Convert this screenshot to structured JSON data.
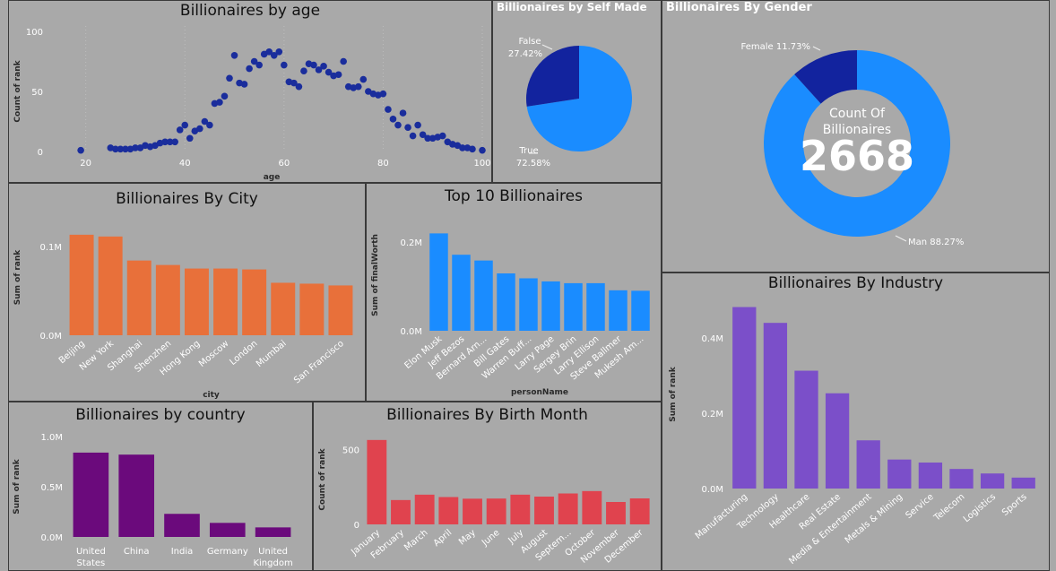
{
  "charts": {
    "age": {
      "title": "Billionaires by age",
      "chart_data": {
        "type": "scatter",
        "title": "Billionaires by age",
        "xlabel": "age",
        "ylabel": "Count of rank",
        "xlim": [
          15,
          100
        ],
        "ylim": [
          0,
          100
        ],
        "xticks": [
          20,
          40,
          60,
          80,
          100
        ],
        "yticks": [
          0,
          50,
          100
        ],
        "color": "#1a2d9c",
        "points": [
          [
            19,
            1
          ],
          [
            25,
            3
          ],
          [
            26,
            2
          ],
          [
            27,
            2
          ],
          [
            28,
            2
          ],
          [
            29,
            2
          ],
          [
            30,
            3
          ],
          [
            31,
            3
          ],
          [
            32,
            5
          ],
          [
            33,
            4
          ],
          [
            34,
            5
          ],
          [
            35,
            7
          ],
          [
            36,
            8
          ],
          [
            37,
            8
          ],
          [
            38,
            8
          ],
          [
            39,
            18
          ],
          [
            40,
            22
          ],
          [
            41,
            11
          ],
          [
            42,
            17
          ],
          [
            43,
            19
          ],
          [
            44,
            25
          ],
          [
            45,
            22
          ],
          [
            46,
            40
          ],
          [
            47,
            41
          ],
          [
            48,
            46
          ],
          [
            49,
            61
          ],
          [
            50,
            80
          ],
          [
            51,
            57
          ],
          [
            52,
            56
          ],
          [
            53,
            69
          ],
          [
            54,
            75
          ],
          [
            55,
            72
          ],
          [
            56,
            81
          ],
          [
            57,
            83
          ],
          [
            58,
            80
          ],
          [
            59,
            83
          ],
          [
            60,
            72
          ],
          [
            61,
            58
          ],
          [
            62,
            57
          ],
          [
            63,
            54
          ],
          [
            64,
            67
          ],
          [
            65,
            73
          ],
          [
            66,
            72
          ],
          [
            67,
            68
          ],
          [
            68,
            71
          ],
          [
            69,
            66
          ],
          [
            70,
            63
          ],
          [
            71,
            64
          ],
          [
            72,
            75
          ],
          [
            73,
            54
          ],
          [
            74,
            53
          ],
          [
            75,
            54
          ],
          [
            76,
            60
          ],
          [
            77,
            50
          ],
          [
            78,
            48
          ],
          [
            79,
            47
          ],
          [
            80,
            48
          ],
          [
            81,
            35
          ],
          [
            82,
            27
          ],
          [
            83,
            22
          ],
          [
            84,
            32
          ],
          [
            85,
            20
          ],
          [
            86,
            13
          ],
          [
            87,
            22
          ],
          [
            88,
            14
          ],
          [
            89,
            11
          ],
          [
            90,
            11
          ],
          [
            91,
            12
          ],
          [
            92,
            13
          ],
          [
            93,
            8
          ],
          [
            94,
            6
          ],
          [
            95,
            5
          ],
          [
            96,
            3
          ],
          [
            97,
            3
          ],
          [
            98,
            2
          ],
          [
            100,
            1
          ]
        ]
      }
    },
    "selfmade": {
      "title": "Billionaires by Self Made",
      "chart_data": {
        "type": "pie",
        "title": "Billionaires by Self Made",
        "slices": [
          {
            "label": "True",
            "value": 72.58,
            "pct_label": "72.58%",
            "color": "#1a8cff"
          },
          {
            "label": "False",
            "value": 27.42,
            "pct_label": "27.42%",
            "color": "#12239e"
          }
        ]
      }
    },
    "gender": {
      "title": "Billionaires By Gender",
      "center_label_line1": "Count Of",
      "center_label_line2": "Billionaires",
      "center_value": "2668",
      "chart_data": {
        "type": "pie",
        "subtype": "donut",
        "title": "Billionaires By Gender",
        "slices": [
          {
            "label": "Man",
            "value": 88.27,
            "text": "Man 88.27%",
            "color": "#1a8cff"
          },
          {
            "label": "Female",
            "value": 11.73,
            "text": "Female 11.73%",
            "color": "#12239e"
          }
        ]
      }
    },
    "city": {
      "title": "Billionaires By City",
      "chart_data": {
        "type": "bar",
        "title": "Billionaires By City",
        "xlabel": "city",
        "ylabel": "Sum of rank",
        "color": "#e8703a",
        "ylim": [
          0,
          0.13
        ],
        "yticks": [
          {
            "v": 0,
            "label": "0.0M"
          },
          {
            "v": 0.1,
            "label": "0.1M"
          }
        ],
        "categories": [
          "Beijing",
          "New York",
          "Shanghai",
          "Shenzhen",
          "Hong Kong",
          "Moscow",
          "London",
          "Mumbai",
          "",
          "San Francisco"
        ],
        "values": [
          0.113,
          0.111,
          0.084,
          0.079,
          0.075,
          0.075,
          0.074,
          0.059,
          0.058,
          0.056
        ]
      }
    },
    "top10": {
      "title": "Top 10 Billionaires",
      "chart_data": {
        "type": "bar",
        "title": "Top 10 Billionaires",
        "xlabel": "personName",
        "ylabel": "Sum of finalWorth",
        "color": "#1a8cff",
        "ylim": [
          0,
          0.25
        ],
        "yticks": [
          {
            "v": 0,
            "label": "0.0M"
          },
          {
            "v": 0.2,
            "label": "0.2M"
          }
        ],
        "categories": [
          "Elon Musk",
          "Jeff Bezos",
          "Bernard Arn...",
          "Bill Gates",
          "Warren Buff...",
          "Larry Page",
          "Sergey Brin",
          "Larry Ellison",
          "Steve Ballmer",
          "Mukesh Am..."
        ],
        "values": [
          0.219,
          0.171,
          0.158,
          0.129,
          0.118,
          0.111,
          0.107,
          0.107,
          0.091,
          0.09
        ]
      }
    },
    "industry": {
      "title": "Billionaires By Industry",
      "chart_data": {
        "type": "bar",
        "title": "Billionaires By Industry",
        "xlabel": "",
        "ylabel": "Sum of rank",
        "color": "#7b4fc9",
        "ylim": [
          0,
          0.5
        ],
        "yticks": [
          {
            "v": 0,
            "label": "0.0M"
          },
          {
            "v": 0.2,
            "label": "0.2M"
          },
          {
            "v": 0.4,
            "label": "0.4M"
          }
        ],
        "categories": [
          "Manufacturing",
          "Technology",
          "Healthcare",
          "Real Estate",
          "Media & Entertainment",
          "Metals & Mining",
          "Service",
          "Telecom",
          "Logistics",
          "Sports"
        ],
        "values": [
          0.482,
          0.44,
          0.313,
          0.253,
          0.128,
          0.077,
          0.069,
          0.052,
          0.04,
          0.029
        ]
      }
    },
    "country": {
      "title": "Billionaires by country",
      "chart_data": {
        "type": "bar",
        "title": "Billionaires by country",
        "xlabel": "",
        "ylabel": "Sum of rank",
        "color": "#6b0a7c",
        "ylim": [
          0,
          1.0
        ],
        "yticks": [
          {
            "v": 0,
            "label": "0.0M"
          },
          {
            "v": 0.5,
            "label": "0.5M"
          },
          {
            "v": 1.0,
            "label": "1.0M"
          }
        ],
        "categories": [
          [
            "United",
            "States"
          ],
          [
            "China"
          ],
          [
            "India"
          ],
          [
            "Germany"
          ],
          [
            "United",
            "Kingdom"
          ]
        ],
        "values": [
          0.84,
          0.82,
          0.23,
          0.14,
          0.095
        ]
      }
    },
    "month": {
      "title": "Billionaires By Birth Month",
      "chart_data": {
        "type": "bar",
        "title": "Billionaires By Birth Month",
        "xlabel": "",
        "ylabel": "Count of rank",
        "color": "#e0434e",
        "ylim": [
          0,
          600
        ],
        "yticks": [
          {
            "v": 0,
            "label": "0"
          },
          {
            "v": 500,
            "label": "500"
          }
        ],
        "categories": [
          "January",
          "February",
          "March",
          "April",
          "May",
          "June",
          "July",
          "August",
          "Septem...",
          "October",
          "November",
          "December"
        ],
        "values": [
          565,
          163,
          199,
          183,
          172,
          173,
          199,
          186,
          207,
          223,
          150,
          174
        ]
      }
    }
  }
}
